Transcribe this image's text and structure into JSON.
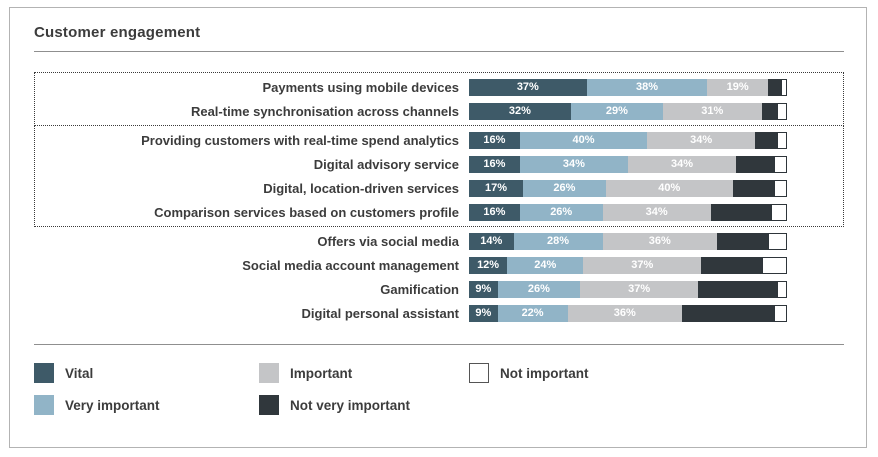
{
  "title": "Customer engagement",
  "chart_data": {
    "type": "bar",
    "orientation": "horizontal",
    "stacked": true,
    "xlim": [
      0,
      100
    ],
    "unit": "%",
    "legend_position": "bottom",
    "categories": [
      "Payments using mobile devices",
      "Real-time synchronisation across channels",
      "Providing customers with real-time spend analytics",
      "Digital advisory service",
      "Digital, location-driven services",
      "Comparison services based on customers profile",
      "Offers via social media",
      "Social media account management",
      "Gamification",
      "Digital personal assistant"
    ],
    "series": [
      {
        "key": "vital",
        "name": "Vital",
        "color": "#3e5a68",
        "labeled": true,
        "values": [
          37,
          32,
          16,
          16,
          17,
          16,
          14,
          12,
          9,
          9
        ]
      },
      {
        "key": "very-important",
        "name": "Very important",
        "color": "#91b4c7",
        "labeled": true,
        "values": [
          38,
          29,
          40,
          34,
          26,
          26,
          28,
          24,
          26,
          22
        ]
      },
      {
        "key": "important",
        "name": "Important",
        "color": "#c4c5c7",
        "labeled": true,
        "values": [
          19,
          31,
          34,
          34,
          40,
          34,
          36,
          37,
          37,
          36
        ]
      },
      {
        "key": "not-very-important",
        "name": "Not very important",
        "color": "#30373c",
        "labeled": false,
        "values": [
          4,
          5,
          7,
          12,
          13,
          19,
          16,
          19,
          25,
          29
        ]
      },
      {
        "key": "not-important",
        "name": "Not important",
        "color": "#ffffff",
        "labeled": false,
        "border": true,
        "values": [
          2,
          3,
          3,
          4,
          4,
          5,
          6,
          8,
          3,
          4
        ]
      }
    ],
    "groups": [
      {
        "rows": [
          0,
          1
        ],
        "dotted": true
      },
      {
        "rows": [
          2,
          3,
          4,
          5
        ],
        "dotted": true
      },
      {
        "rows": [
          6,
          7,
          8,
          9
        ],
        "dotted": false
      }
    ]
  },
  "legend": {
    "items": [
      {
        "key": "vital",
        "label": "Vital",
        "color": "#3e5a68"
      },
      {
        "key": "important",
        "label": "Important",
        "color": "#c4c5c7"
      },
      {
        "key": "not-important",
        "label": "Not important",
        "color": "#ffffff",
        "border": true
      },
      {
        "key": "very-important",
        "label": "Very important",
        "color": "#91b4c7"
      },
      {
        "key": "not-very-important",
        "label": "Not very important",
        "color": "#30373c"
      }
    ]
  }
}
